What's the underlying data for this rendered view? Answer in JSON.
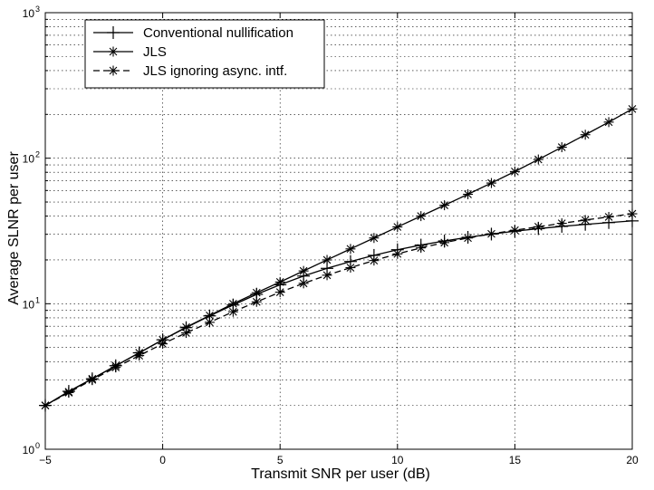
{
  "chart_data": {
    "type": "line",
    "xlabel": "Transmit SNR per user (dB)",
    "ylabel": "Average SLNR per user",
    "xlim": [
      -5,
      20
    ],
    "ylim": [
      1,
      1000
    ],
    "yscale": "log",
    "grid": true,
    "legend_position": "top-left",
    "x_ticks": [
      -5,
      0,
      5,
      10,
      15,
      20
    ],
    "x_tick_labels": [
      "−5",
      "0",
      "5",
      "10",
      "15",
      "20"
    ],
    "y_ticks": [
      {
        "value": 1,
        "base": "10",
        "exp": "0"
      },
      {
        "value": 10,
        "base": "10",
        "exp": "1"
      },
      {
        "value": 100,
        "base": "10",
        "exp": "2"
      },
      {
        "value": 1000,
        "base": "10",
        "exp": "3"
      }
    ],
    "x": [
      -5,
      -4,
      -3,
      -2,
      -1,
      0,
      1,
      2,
      3,
      4,
      5,
      6,
      7,
      8,
      9,
      10,
      11,
      12,
      13,
      14,
      15,
      16,
      17,
      18,
      19,
      20
    ],
    "series": [
      {
        "name": "Conventional nullification",
        "marker": "plus",
        "linestyle": "solid",
        "values": [
          2.0,
          2.5,
          3.05,
          3.75,
          4.6,
          5.65,
          6.85,
          8.25,
          9.8,
          11.6,
          13.5,
          15.5,
          17.5,
          19.5,
          21.5,
          23.5,
          25.3,
          27.0,
          28.6,
          30.1,
          31.5,
          32.8,
          34.0,
          35.1,
          36.1,
          37.1
        ]
      },
      {
        "name": "JLS",
        "marker": "star",
        "linestyle": "solid",
        "values": [
          2.0,
          2.48,
          3.05,
          3.75,
          4.6,
          5.65,
          6.9,
          8.3,
          10.0,
          11.9,
          14.1,
          16.8,
          20.0,
          23.8,
          28.3,
          33.7,
          40.0,
          47.5,
          56.5,
          67.5,
          81.0,
          98.0,
          119,
          145,
          177,
          218
        ]
      },
      {
        "name": "JLS ignoring async. intf.",
        "marker": "star",
        "linestyle": "dashed",
        "values": [
          2.0,
          2.45,
          3.0,
          3.65,
          4.4,
          5.3,
          6.3,
          7.45,
          8.8,
          10.3,
          12.0,
          13.8,
          15.7,
          17.7,
          19.8,
          22.0,
          24.2,
          26.3,
          28.3,
          30.2,
          32.0,
          33.8,
          35.7,
          37.6,
          39.5,
          41.5
        ]
      }
    ]
  }
}
